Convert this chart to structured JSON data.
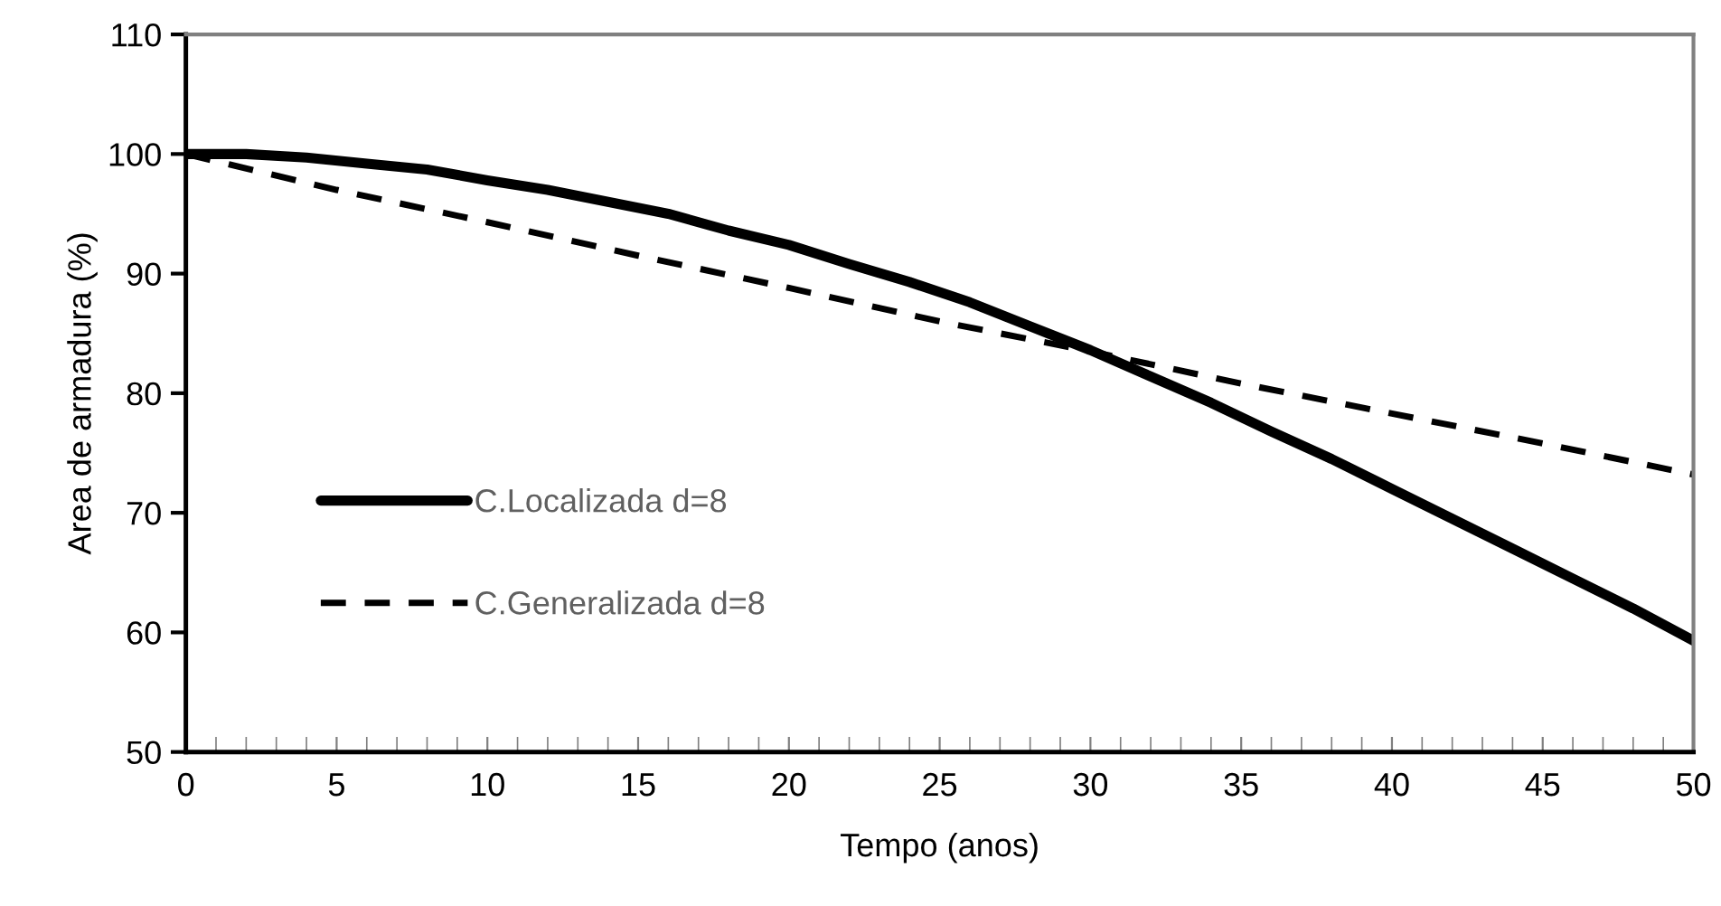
{
  "chart_data": {
    "type": "line",
    "xlabel": "Tempo (anos)",
    "ylabel": "Area de armadura (%)",
    "xlim": [
      0,
      50
    ],
    "ylim": [
      50,
      110
    ],
    "xticks": [
      0,
      {
        "value": 1,
        "label": null
      },
      {
        "value": 2,
        "label": null
      },
      {
        "value": 3,
        "label": null
      },
      {
        "value": 4,
        "label": null
      },
      5,
      {
        "value": 6,
        "label": null
      },
      {
        "value": 7,
        "label": null
      },
      {
        "value": 8,
        "label": null
      },
      {
        "value": 9,
        "label": null
      },
      10,
      {
        "value": 11,
        "label": null
      },
      {
        "value": 12,
        "label": null
      },
      {
        "value": 13,
        "label": null
      },
      {
        "value": 14,
        "label": null
      },
      15,
      {
        "value": 16,
        "label": null
      },
      {
        "value": 17,
        "label": null
      },
      {
        "value": 18,
        "label": null
      },
      {
        "value": 19,
        "label": null
      },
      20,
      {
        "value": 21,
        "label": null
      },
      {
        "value": 22,
        "label": null
      },
      {
        "value": 23,
        "label": null
      },
      {
        "value": 24,
        "label": null
      },
      25,
      {
        "value": 26,
        "label": null
      },
      {
        "value": 27,
        "label": null
      },
      {
        "value": 28,
        "label": null
      },
      {
        "value": 29,
        "label": null
      },
      30,
      {
        "value": 31,
        "label": null
      },
      {
        "value": 32,
        "label": null
      },
      {
        "value": 33,
        "label": null
      },
      {
        "value": 34,
        "label": null
      },
      35,
      {
        "value": 36,
        "label": null
      },
      {
        "value": 37,
        "label": null
      },
      {
        "value": 38,
        "label": null
      },
      {
        "value": 39,
        "label": null
      },
      40,
      {
        "value": 41,
        "label": null
      },
      {
        "value": 42,
        "label": null
      },
      {
        "value": 43,
        "label": null
      },
      {
        "value": 44,
        "label": null
      },
      45,
      {
        "value": 46,
        "label": null
      },
      {
        "value": 47,
        "label": null
      },
      {
        "value": 48,
        "label": null
      },
      {
        "value": 49,
        "label": null
      },
      50
    ],
    "yticks": [
      50,
      60,
      70,
      80,
      90,
      100,
      110
    ],
    "grid": false,
    "legend": "left",
    "marker": "none",
    "series": [
      {
        "name": "C.Localizada d=8",
        "color": "#000000",
        "line_style": "solid",
        "x": [
          0,
          2,
          4,
          6,
          8,
          10,
          12,
          14,
          16,
          18,
          20,
          22,
          24,
          26,
          28,
          30,
          32,
          34,
          36,
          38,
          40,
          42,
          44,
          46,
          48,
          50
        ],
        "values": [
          100,
          100,
          99.7,
          99.2,
          98.7,
          97.8,
          97,
          96,
          95,
          93.6,
          92.4,
          90.8,
          89.3,
          87.6,
          85.6,
          83.6,
          81.4,
          79.2,
          76.8,
          74.5,
          72,
          69.5,
          67,
          64.5,
          62,
          59.3
        ]
      },
      {
        "name": "C.Generalizada d=8",
        "color": "#000000",
        "line_style": "dashed",
        "x": [
          0,
          5,
          10,
          15,
          20,
          25,
          30,
          35,
          40,
          45,
          50
        ],
        "values": [
          100,
          97,
          94.3,
          91.5,
          88.8,
          86,
          83.5,
          80.8,
          78.3,
          75.8,
          73.2
        ]
      }
    ]
  }
}
